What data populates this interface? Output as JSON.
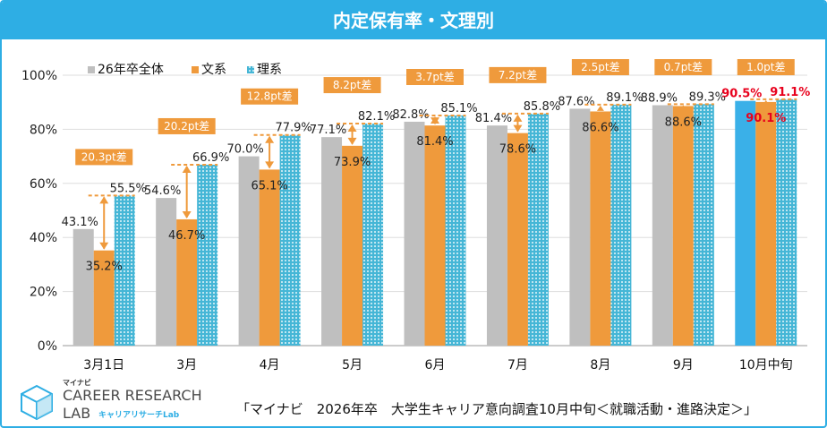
{
  "title": "内定保有率・文理別",
  "footer": "「マイナビ　2026年卒　大学生キャリア意向調査10月中旬＜就職活動・進路決定＞」",
  "brand": {
    "prefix": "マイナビ",
    "line1": "CAREER RESEARCH",
    "line2": "LAB",
    "sub": "キャリアリサーチLab"
  },
  "colors": {
    "total": "#bfbfbf",
    "bunkei": "#ef9a3c",
    "rikei": "#45b6d6",
    "highlight_total": "#3ab0e8",
    "highlight_label": "#e8001c",
    "gap_box": "#ef9a3c",
    "arrow": "#ef9a3c",
    "title_bar": "#2eaee4"
  },
  "chart_data": {
    "type": "bar",
    "title": "内定保有率・文理別",
    "categories": [
      "3月1日",
      "3月",
      "4月",
      "5月",
      "6月",
      "7月",
      "8月",
      "9月",
      "10月中旬"
    ],
    "series": [
      {
        "name": "26年卒全体",
        "values": [
          43.1,
          54.6,
          70.0,
          77.1,
          82.8,
          81.4,
          87.6,
          88.9,
          90.5
        ]
      },
      {
        "name": "文系",
        "values": [
          35.2,
          46.7,
          65.1,
          73.9,
          81.4,
          78.6,
          86.6,
          88.6,
          90.1
        ]
      },
      {
        "name": "理系",
        "values": [
          55.5,
          66.9,
          77.9,
          82.1,
          85.1,
          85.8,
          89.1,
          89.3,
          91.1
        ]
      }
    ],
    "value_labels": {
      "total": [
        "43.1%",
        "54.6%",
        "70.0%",
        "77.1%",
        "82.8%",
        "81.4%",
        "87.6%",
        "88.9%",
        "90.5%"
      ],
      "bunkei": [
        "35.2%",
        "46.7%",
        "65.1%",
        "73.9%",
        "81.4%",
        "78.6%",
        "86.6%",
        "88.6%",
        "90.1%"
      ],
      "rikei": [
        "55.5%",
        "66.9%",
        "77.9%",
        "82.1%",
        "85.1%",
        "85.8%",
        "89.1%",
        "89.3%",
        "91.1%"
      ]
    },
    "gap_labels": [
      "20.3pt差",
      "20.2pt差",
      "12.8pt差",
      "8.2pt差",
      "3.7pt差",
      "7.2pt差",
      "2.5pt差",
      "0.7pt差",
      "1.0pt差"
    ],
    "y_ticks": [
      "0%",
      "20%",
      "40%",
      "60%",
      "80%",
      "100%"
    ],
    "ylim": [
      0,
      100
    ],
    "legend_position": "top-left",
    "grid": true,
    "highlight_category": "10月中旬",
    "xlabel": "",
    "ylabel": ""
  }
}
